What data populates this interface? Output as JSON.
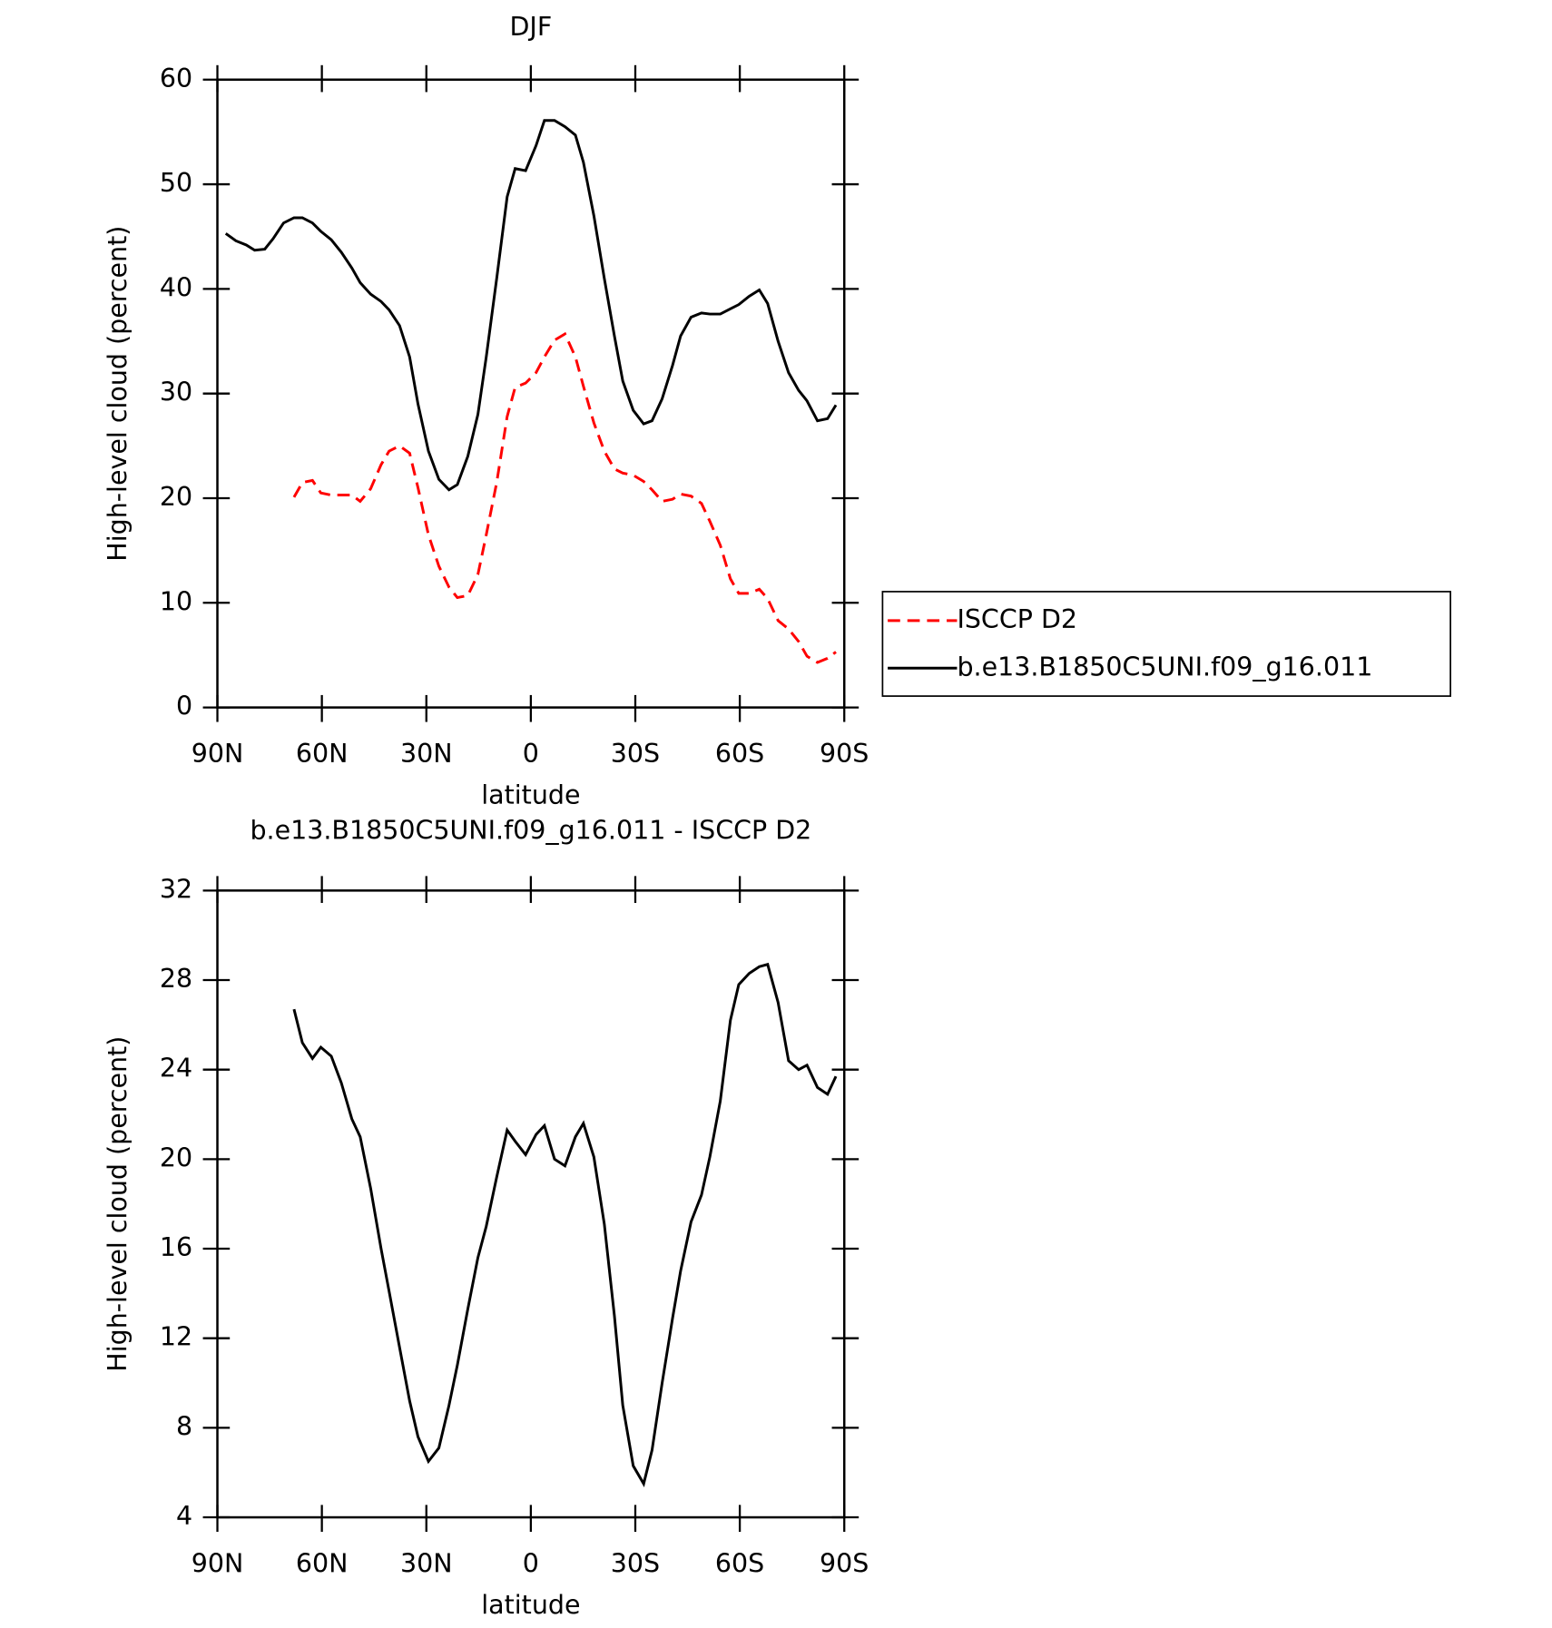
{
  "chart_data": [
    {
      "type": "line",
      "title": "DJF",
      "xlabel": "latitude",
      "ylabel": "High-level cloud (percent)",
      "x": [
        87.6,
        84.7,
        81.7,
        79.3,
        76.4,
        74.0,
        71.0,
        68.0,
        65.6,
        62.7,
        60.3,
        57.3,
        54.4,
        51.4,
        49.0,
        46.0,
        43.0,
        40.7,
        37.7,
        34.8,
        32.4,
        29.4,
        26.4,
        23.5,
        21.1,
        18.1,
        15.2,
        12.8,
        9.8,
        6.8,
        4.5,
        1.5,
        -1.5,
        -3.9,
        -6.8,
        -9.8,
        -12.8,
        -15.1,
        -18.1,
        -21.1,
        -24.0,
        -26.4,
        -29.4,
        -32.4,
        -34.8,
        -37.7,
        -40.7,
        -43.0,
        -46.0,
        -49.0,
        -51.4,
        -54.4,
        -57.3,
        -59.7,
        -62.7,
        -65.6,
        -68.0,
        -71.0,
        -74.0,
        -76.9,
        -79.3,
        -82.3,
        -85.2,
        -87.6
      ],
      "series": [
        {
          "name": "ISCCP D2",
          "color": "#ff0000",
          "dash": true,
          "values": [
            null,
            null,
            null,
            null,
            null,
            null,
            null,
            20.1,
            21.5,
            21.7,
            20.5,
            20.3,
            20.3,
            20.3,
            19.7,
            20.9,
            23.2,
            24.5,
            25,
            24.3,
            21,
            16.5,
            13.5,
            11.5,
            10.5,
            10.7,
            12.7,
            16.5,
            21.5,
            27.8,
            30.6,
            31,
            32,
            33.5,
            35.1,
            35.7,
            33.5,
            30.7,
            27.2,
            24.5,
            22.8,
            22.4,
            22.2,
            21.6,
            20.8,
            19.7,
            19.9,
            20.4,
            20.2,
            19.5,
            17.8,
            15.5,
            12.3,
            10.9,
            10.9,
            11.3,
            10.4,
            8.3,
            7.5,
            6.3,
            4.9,
            4.3,
            4.7,
            5.3
          ]
        },
        {
          "name": "b.e13.B1850C5UNI.f09_g16.011",
          "color": "#000000",
          "dash": false,
          "values": [
            45.3,
            44.6,
            44.2,
            43.7,
            43.8,
            44.8,
            46.3,
            46.8,
            46.8,
            46.3,
            45.5,
            44.7,
            43.5,
            42,
            40.6,
            39.5,
            38.8,
            38,
            36.5,
            33.5,
            29,
            24.5,
            21.8,
            20.8,
            21.3,
            24,
            28,
            33.5,
            41,
            48.8,
            51.5,
            51.3,
            53.7,
            56.1,
            56.1,
            55.5,
            54.7,
            52.1,
            47,
            41,
            35.5,
            31.2,
            28.4,
            27.1,
            27.4,
            29.5,
            32.7,
            35.5,
            37.3,
            37.7,
            37.6,
            37.6,
            38.1,
            38.5,
            39.3,
            39.9,
            38.6,
            35,
            32,
            30.3,
            29.3,
            27.4,
            27.6,
            28.9
          ]
        }
      ],
      "xlim": [
        90,
        -90
      ],
      "xticks": [
        {
          "value": 90,
          "label": "90N"
        },
        {
          "value": 60,
          "label": "60N"
        },
        {
          "value": 30,
          "label": "30N"
        },
        0,
        {
          "value": -30,
          "label": "30S"
        },
        {
          "value": -60,
          "label": "60S"
        },
        {
          "value": -90,
          "label": "90S"
        }
      ],
      "ylim": [
        0,
        60
      ],
      "yticks": [
        0,
        10,
        20,
        30,
        40,
        50,
        60
      ],
      "legend": "right"
    },
    {
      "type": "line",
      "title": "b.e13.B1850C5UNI.f09_g16.011 - ISCCP D2",
      "xlabel": "latitude",
      "ylabel": "High-level cloud (percent)",
      "x": [
        68.0,
        65.6,
        62.7,
        60.3,
        57.3,
        54.4,
        51.4,
        49.0,
        46.0,
        43.0,
        40.7,
        37.7,
        34.8,
        32.4,
        29.4,
        26.4,
        23.5,
        21.1,
        18.1,
        15.2,
        12.8,
        9.8,
        6.8,
        4.5,
        1.5,
        -1.5,
        -3.9,
        -6.8,
        -9.8,
        -12.8,
        -15.1,
        -18.1,
        -21.1,
        -24.0,
        -26.4,
        -29.4,
        -32.4,
        -34.8,
        -37.7,
        -40.7,
        -43.0,
        -46.0,
        -49.0,
        -51.4,
        -54.4,
        -57.3,
        -59.7,
        -62.7,
        -65.6,
        -68.0,
        -71.0,
        -74.0,
        -76.9,
        -79.3,
        -82.3,
        -85.2,
        -87.6
      ],
      "series": [
        {
          "color": "#000000",
          "dash": false,
          "values": [
            26.7,
            25.2,
            24.5,
            25,
            24.6,
            23.4,
            21.8,
            21,
            18.7,
            16,
            14.1,
            11.6,
            9.2,
            7.6,
            6.5,
            7.1,
            9,
            10.8,
            13.3,
            15.6,
            17,
            19.2,
            21.3,
            20.8,
            20.2,
            21.1,
            21.5,
            20,
            19.7,
            21,
            21.6,
            20.1,
            17.1,
            13,
            9,
            6.3,
            5.5,
            7,
            10,
            12.9,
            15,
            17.2,
            18.4,
            20.1,
            22.6,
            26.2,
            27.8,
            28.3,
            28.6,
            28.7,
            27,
            24.4,
            24,
            24.2,
            23.2,
            22.9,
            23.7
          ]
        }
      ],
      "xlim": [
        90,
        -90
      ],
      "xticks": [
        {
          "value": 90,
          "label": "90N"
        },
        {
          "value": 60,
          "label": "60N"
        },
        {
          "value": 30,
          "label": "30N"
        },
        0,
        {
          "value": -30,
          "label": "30S"
        },
        {
          "value": -60,
          "label": "60S"
        },
        {
          "value": -90,
          "label": "90S"
        }
      ],
      "ylim": [
        4,
        32
      ],
      "yticks": [
        4,
        8,
        12,
        16,
        20,
        24,
        28,
        32
      ]
    }
  ]
}
